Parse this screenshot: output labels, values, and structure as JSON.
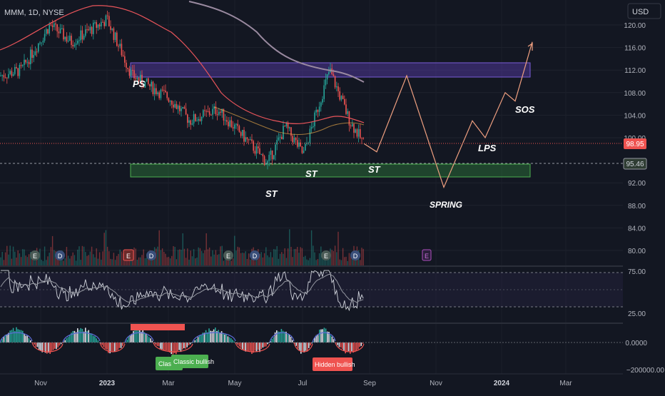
{
  "header": {
    "symbol_label": "MMM, 1D, NYSE"
  },
  "currency_button": {
    "label": "USD"
  },
  "price_axis": {
    "ticks": [
      "120.00",
      "116.00",
      "112.00",
      "108.00",
      "104.00",
      "100.00",
      "92.00",
      "88.00",
      "84.00",
      "80.00"
    ],
    "last_price_label": "98.95",
    "support_label": "95.46"
  },
  "rsi_axis": {
    "ticks": [
      "75.00",
      "25.00"
    ]
  },
  "osc_axis": {
    "ticks": [
      "0.0000",
      "−200000.00"
    ]
  },
  "time_axis": {
    "ticks": [
      "Nov",
      "2023",
      "Mar",
      "May",
      "Jul",
      "Sep",
      "Nov",
      "2024",
      "Mar"
    ]
  },
  "annotations": {
    "ps": "PS",
    "st_low": "ST",
    "st_mid": "ST",
    "st_right": "ST",
    "spring": "SPRING",
    "lps": "LPS",
    "sos": "SOS"
  },
  "earnings_markers": {
    "e": "E",
    "d": "D"
  },
  "divergence_labels": {
    "classic_1": "Classi",
    "classic_2": "Classic bullish",
    "hidden": "Hidden bullish"
  },
  "chart_data": {
    "type": "line",
    "title": "MMM, 1D, NYSE",
    "ylim": [
      78,
      122
    ],
    "price_path_approx": [
      {
        "x": "2022-10-20",
        "y": 111
      },
      {
        "x": "2022-11-05",
        "y": 112
      },
      {
        "x": "2022-12-01",
        "y": 120
      },
      {
        "x": "2022-12-20",
        "y": 117
      },
      {
        "x": "2023-01-05",
        "y": 121
      },
      {
        "x": "2023-01-25",
        "y": 111
      },
      {
        "x": "2023-02-20",
        "y": 107
      },
      {
        "x": "2023-03-15",
        "y": 103
      },
      {
        "x": "2023-04-15",
        "y": 105
      },
      {
        "x": "2023-05-10",
        "y": 99
      },
      {
        "x": "2023-05-25",
        "y": 95.5
      },
      {
        "x": "2023-06-20",
        "y": 102
      },
      {
        "x": "2023-07-05",
        "y": 97
      },
      {
        "x": "2023-07-28",
        "y": 112
      },
      {
        "x": "2023-08-10",
        "y": 103
      },
      {
        "x": "2023-08-25",
        "y": 98.95
      }
    ],
    "projection": [
      {
        "x": "2023-08-28",
        "y": 98.95
      },
      {
        "x": "2023-09-05",
        "y": 97.5
      },
      {
        "x": "2023-10-05",
        "y": 111
      },
      {
        "x": "2023-11-08",
        "y": 91.2
      },
      {
        "x": "2023-12-05",
        "y": 103
      },
      {
        "x": "2023-12-20",
        "y": 100
      },
      {
        "x": "2024-01-10",
        "y": 108
      },
      {
        "x": "2024-01-20",
        "y": 106.5
      },
      {
        "x": "2024-02-05",
        "y": 117
      }
    ],
    "supply_zone": [
      111,
      113.2
    ],
    "demand_zone": [
      93.6,
      95.7
    ],
    "last_price": 98.95,
    "support_level": 95.46,
    "rsi_levels": [
      75,
      50,
      25
    ]
  },
  "colors": {
    "background": "#131722",
    "grid": "#2a2e39",
    "up": "#26a69a",
    "down": "#ef5350",
    "sma200": "#9a8aa0",
    "sma50": "#e8545a",
    "supply_zone": "#5b3fb0",
    "demand_zone": "#2f7d3b",
    "projection": "#f0a080"
  }
}
